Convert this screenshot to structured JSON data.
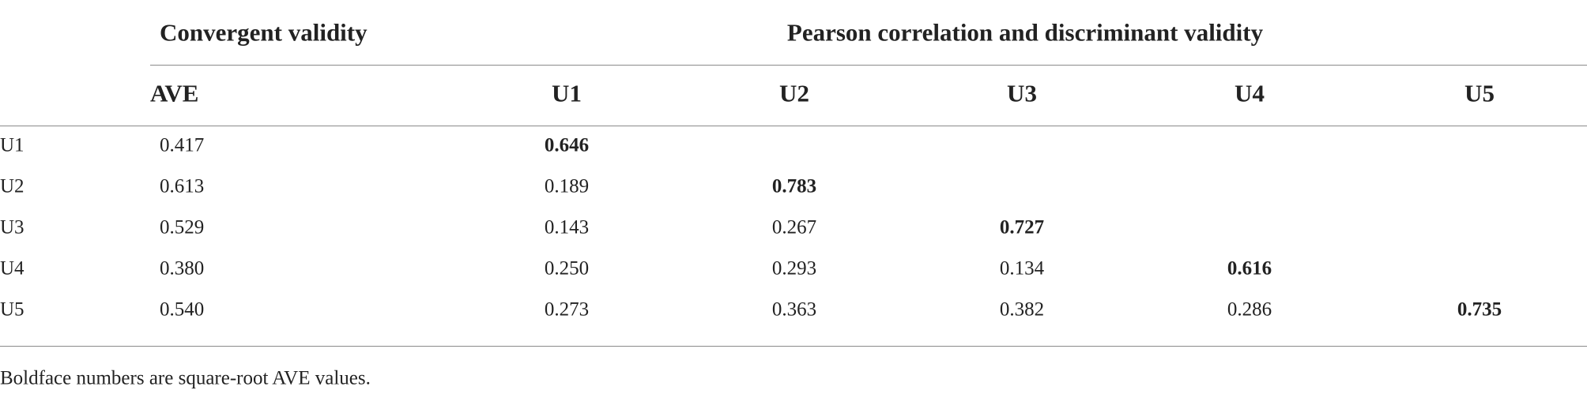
{
  "header": {
    "groups": [
      "Convergent validity",
      "Pearson correlation and discriminant validity"
    ],
    "columns": [
      "AVE",
      "U1",
      "U2",
      "U3",
      "U4",
      "U5"
    ]
  },
  "table": {
    "rows": [
      {
        "label": "U1",
        "cells": [
          "0.417",
          "0.646"
        ]
      },
      {
        "label": "U2",
        "cells": [
          "0.613",
          "0.189",
          "0.783"
        ]
      },
      {
        "label": "U3",
        "cells": [
          "0.529",
          "0.143",
          "0.267",
          "0.727"
        ]
      },
      {
        "label": "U4",
        "cells": [
          "0.380",
          "0.250",
          "0.293",
          "0.134",
          "0.616"
        ]
      },
      {
        "label": "U5",
        "cells": [
          "0.540",
          "0.273",
          "0.363",
          "0.382",
          "0.286",
          "0.735"
        ]
      }
    ]
  },
  "footnote": "Boldface numbers are square-root AVE values."
}
